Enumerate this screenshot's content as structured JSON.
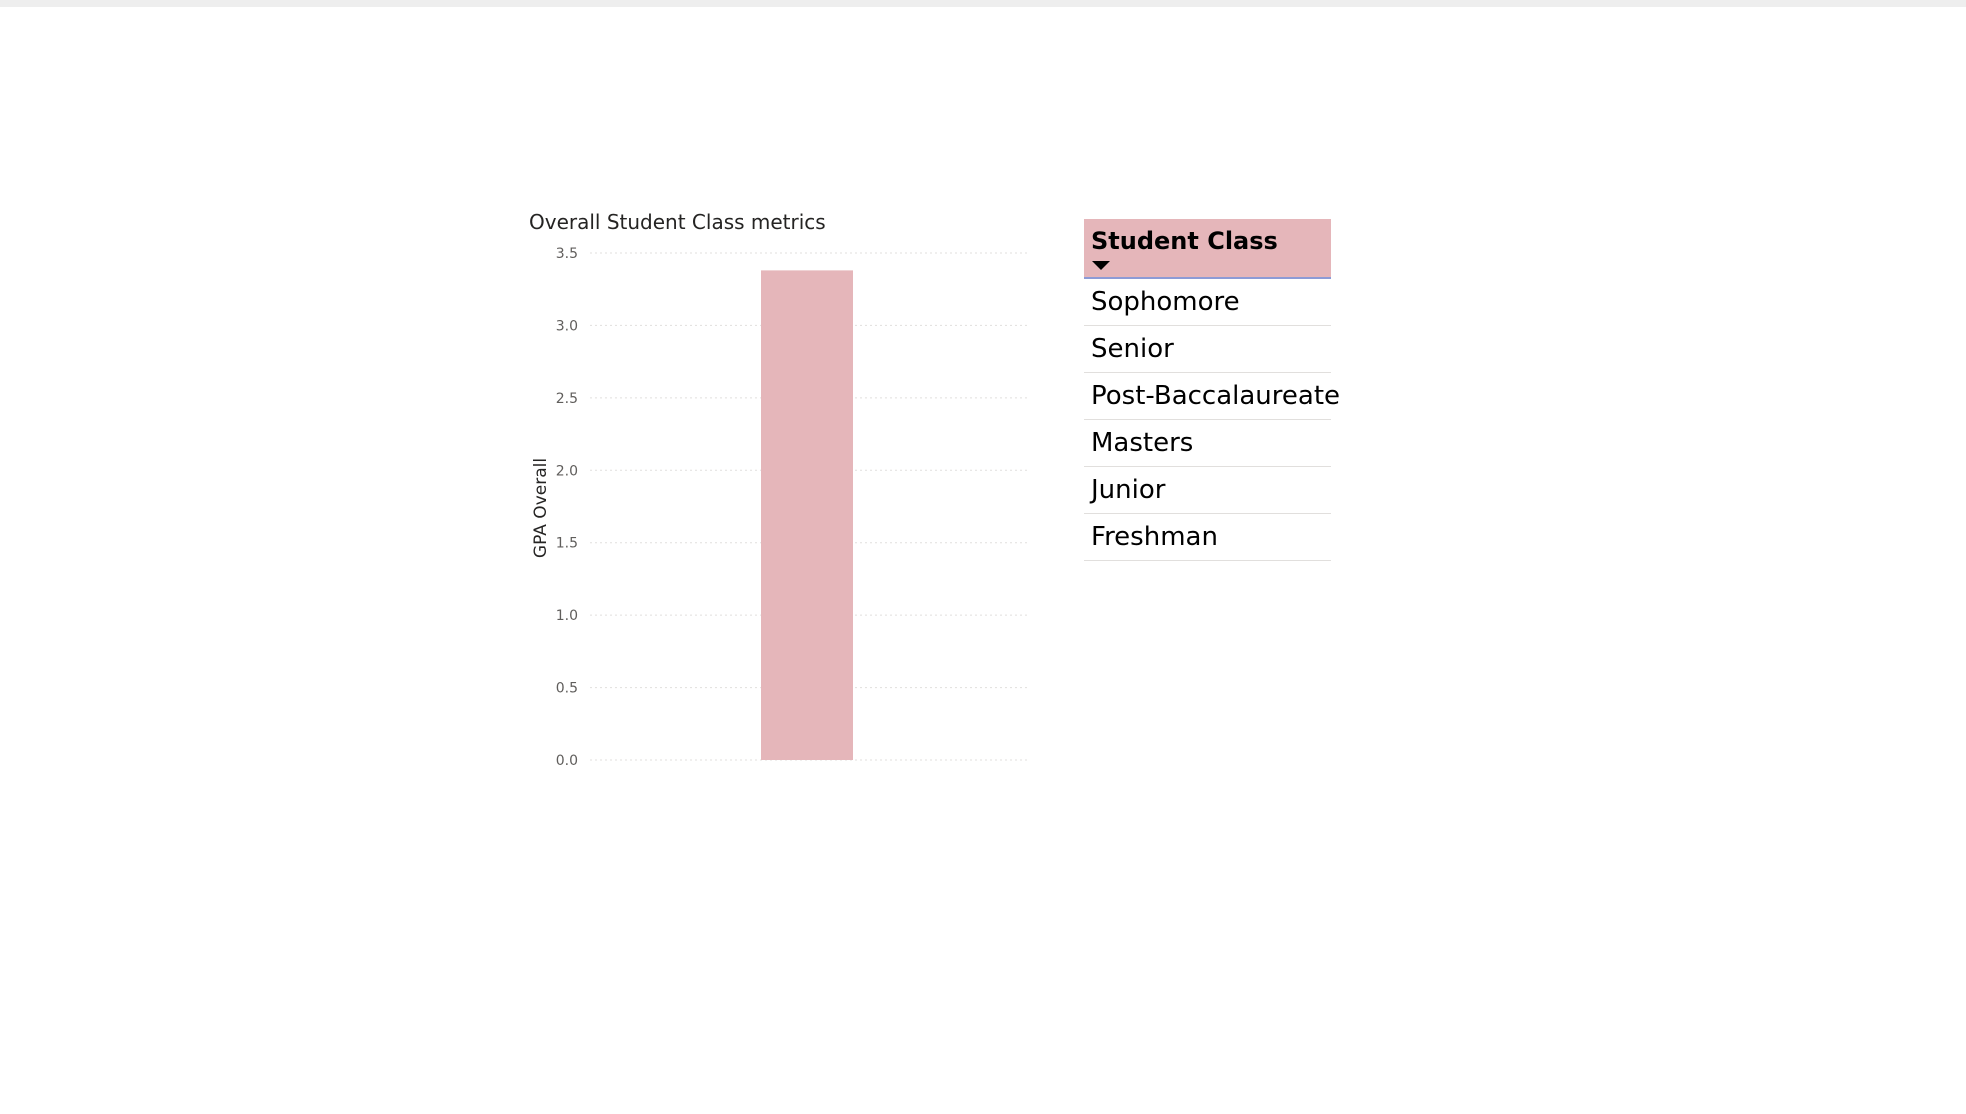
{
  "chart_data": {
    "type": "bar",
    "title": "Overall Student Class metrics",
    "xlabel": "",
    "ylabel": "GPA Overall",
    "categories": [
      ""
    ],
    "values": [
      3.38
    ],
    "ylim": [
      0,
      3.5
    ],
    "yticks": [
      0.0,
      0.5,
      1.0,
      1.5,
      2.0,
      2.5,
      3.0,
      3.5
    ],
    "ytick_labels": [
      "0.0",
      "0.5",
      "1.0",
      "1.5",
      "2.0",
      "2.5",
      "3.0",
      "3.5"
    ],
    "grid": true,
    "bar_color": "#e5b6ba",
    "grid_color": "#e1dfdd"
  },
  "slicer": {
    "title": "Student Class",
    "items": [
      "Sophomore",
      "Senior",
      "Post-Baccalaureate",
      "Masters",
      "Junior",
      "Freshman"
    ],
    "header_color": "#e5b6ba",
    "accent_color": "#8d9bd6"
  }
}
